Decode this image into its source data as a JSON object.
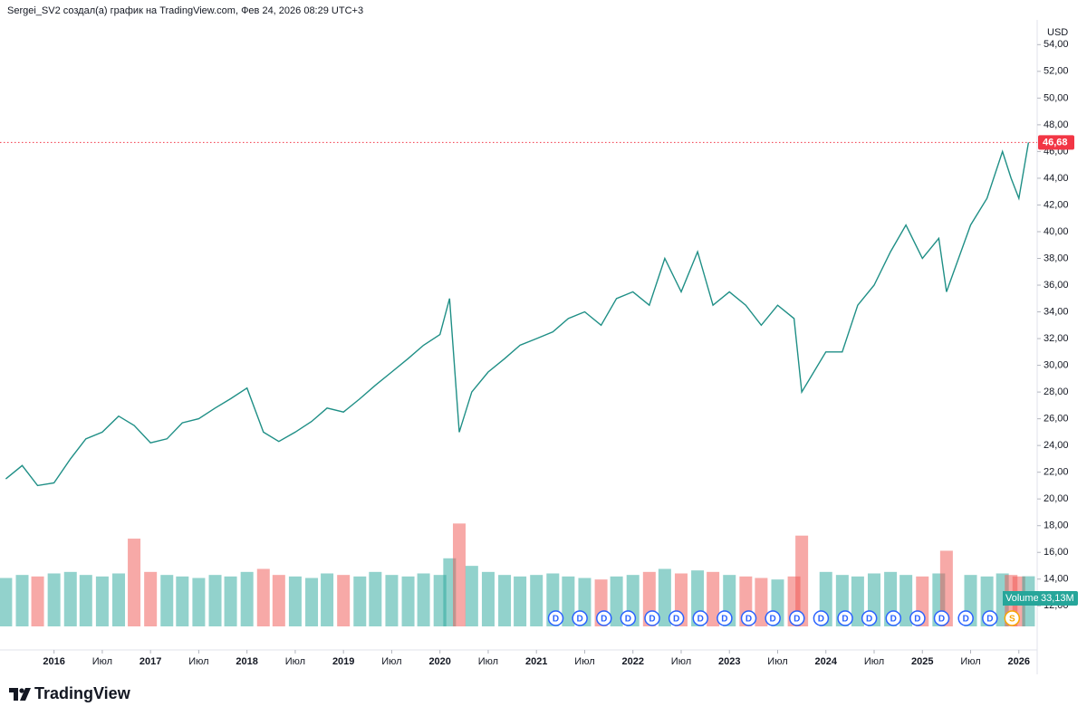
{
  "header": "Sergei_SV2 создал(а) график на TradingView.com, Фев 24, 2026 08:29 UTC+3",
  "brand": "TradingView",
  "chart_data": {
    "type": "line",
    "currency": "USD",
    "x": [
      2015.5,
      2015.67,
      2015.83,
      2016,
      2016.17,
      2016.33,
      2016.5,
      2016.67,
      2016.83,
      2017,
      2017.17,
      2017.33,
      2017.5,
      2017.67,
      2017.83,
      2018,
      2018.17,
      2018.33,
      2018.5,
      2018.67,
      2018.83,
      2019,
      2019.17,
      2019.33,
      2019.5,
      2019.67,
      2019.83,
      2020,
      2020.1,
      2020.2,
      2020.33,
      2020.5,
      2020.67,
      2020.83,
      2021,
      2021.17,
      2021.33,
      2021.5,
      2021.67,
      2021.83,
      2022,
      2022.17,
      2022.33,
      2022.5,
      2022.67,
      2022.83,
      2023,
      2023.17,
      2023.33,
      2023.5,
      2023.67,
      2023.75,
      2024,
      2024.17,
      2024.33,
      2024.5,
      2024.67,
      2024.83,
      2025,
      2025.17,
      2025.25,
      2025.5,
      2025.67,
      2025.83,
      2025.92,
      2026,
      2026.1
    ],
    "series": [
      {
        "values": [
          21.5,
          22.5,
          21.0,
          21.2,
          23.0,
          24.5,
          25.0,
          26.2,
          25.5,
          24.2,
          24.5,
          25.7,
          26.0,
          26.8,
          27.5,
          28.3,
          25.0,
          24.3,
          25.0,
          25.8,
          26.8,
          26.5,
          27.5,
          28.5,
          29.5,
          30.5,
          31.5,
          32.3,
          35.0,
          25.0,
          28.0,
          29.5,
          30.5,
          31.5,
          32.0,
          32.5,
          33.5,
          34.0,
          33.0,
          35.0,
          35.5,
          34.5,
          38.0,
          35.5,
          38.5,
          34.5,
          35.5,
          34.5,
          33.0,
          34.5,
          33.5,
          28.0,
          31.0,
          31.0,
          34.5,
          36.0,
          38.5,
          40.5,
          38.0,
          39.5,
          35.5,
          40.5,
          42.5,
          46.0,
          44.0,
          42.5,
          46.68
        ],
        "color": "#1f8f86",
        "last_label": "46,68",
        "last_color": "#f23645"
      },
      {
        "name": "Volume",
        "axis": "y2",
        "up_color": "#26a69a80",
        "down_color": "#ef535080",
        "last_label": "33,13M",
        "last_color": "#26a69a",
        "values": [
          32,
          34,
          33,
          35,
          36,
          34,
          33,
          35,
          58,
          36,
          34,
          33,
          32,
          34,
          33,
          36,
          38,
          34,
          33,
          32,
          35,
          34,
          33,
          36,
          34,
          33,
          35,
          34,
          45,
          68,
          40,
          36,
          34,
          33,
          34,
          35,
          33,
          32,
          31,
          33,
          34,
          36,
          38,
          35,
          37,
          36,
          34,
          33,
          32,
          31,
          33,
          60,
          36,
          34,
          33,
          35,
          36,
          34,
          33,
          35,
          50,
          34,
          33,
          35,
          34,
          33,
          33.13
        ]
      }
    ],
    "xlim": [
      2015.44,
      2026.19
    ],
    "xticks": [
      2016,
      {
        "value": 2016.5,
        "label": "Июл"
      },
      2017,
      {
        "value": 2017.5,
        "label": "Июл"
      },
      2018,
      {
        "value": 2018.5,
        "label": "Июл"
      },
      2019,
      {
        "value": 2019.5,
        "label": "Июл"
      },
      2020,
      {
        "value": 2020.5,
        "label": "Июл"
      },
      2021,
      {
        "value": 2021.5,
        "label": "Июл"
      },
      2022,
      {
        "value": 2022.5,
        "label": "Июл"
      },
      2023,
      {
        "value": 2023.5,
        "label": "Июл"
      },
      2024,
      {
        "value": 2024.5,
        "label": "Июл"
      },
      2025,
      {
        "value": 2025.5,
        "label": "Июл"
      },
      2026
    ],
    "ylim": [
      8.7,
      55.85
    ],
    "yticks": [
      {
        "value": 12,
        "label": "12,00"
      },
      {
        "value": 14,
        "label": "14,00"
      },
      {
        "value": 16,
        "label": "16,00"
      },
      {
        "value": 18,
        "label": "18,00"
      },
      {
        "value": 20,
        "label": "20,00"
      },
      {
        "value": 22,
        "label": "22,00"
      },
      {
        "value": 24,
        "label": "24,00"
      },
      {
        "value": 26,
        "label": "26,00"
      },
      {
        "value": 28,
        "label": "28,00"
      },
      {
        "value": 30,
        "label": "30,00"
      },
      {
        "value": 32,
        "label": "32,00"
      },
      {
        "value": 34,
        "label": "34,00"
      },
      {
        "value": 36,
        "label": "36,00"
      },
      {
        "value": 38,
        "label": "38,00"
      },
      {
        "value": 40,
        "label": "40,00"
      },
      {
        "value": 42,
        "label": "42,00"
      },
      {
        "value": 44,
        "label": "44,00"
      },
      {
        "value": 46,
        "label": "46,00"
      },
      {
        "value": 48,
        "label": "48,00"
      },
      {
        "value": 50,
        "label": "50,00"
      },
      {
        "value": 52,
        "label": "52,00"
      },
      {
        "value": 54,
        "label": "54,00"
      }
    ],
    "y2lim": [
      0,
      70
    ],
    "events": [
      {
        "x": 2021.2,
        "label": "D"
      },
      {
        "x": 2021.45,
        "label": "D"
      },
      {
        "x": 2021.7,
        "label": "D"
      },
      {
        "x": 2021.95,
        "label": "D"
      },
      {
        "x": 2022.2,
        "label": "D"
      },
      {
        "x": 2022.45,
        "label": "D"
      },
      {
        "x": 2022.7,
        "label": "D"
      },
      {
        "x": 2022.95,
        "label": "D"
      },
      {
        "x": 2023.2,
        "label": "D"
      },
      {
        "x": 2023.45,
        "label": "D"
      },
      {
        "x": 2023.7,
        "label": "D"
      },
      {
        "x": 2023.95,
        "label": "D"
      },
      {
        "x": 2024.2,
        "label": "D"
      },
      {
        "x": 2024.45,
        "label": "D"
      },
      {
        "x": 2024.7,
        "label": "D"
      },
      {
        "x": 2024.95,
        "label": "D"
      },
      {
        "x": 2025.2,
        "label": "D"
      },
      {
        "x": 2025.45,
        "label": "D"
      },
      {
        "x": 2025.7,
        "label": "D"
      },
      {
        "x": 2025.93,
        "label": "S"
      }
    ],
    "grid": false
  }
}
